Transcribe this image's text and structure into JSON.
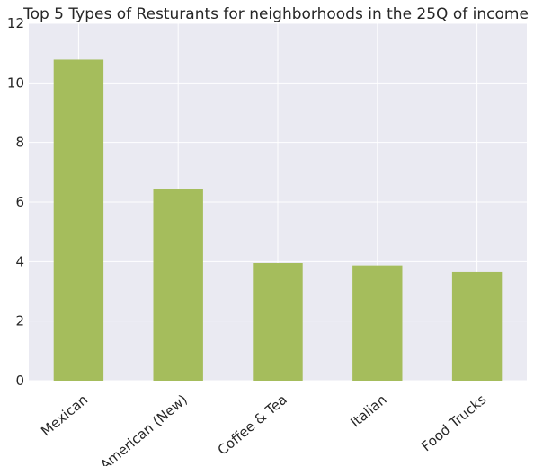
{
  "chart_data": {
    "type": "bar",
    "title": "Top 5 Types of Resturants for neighborhoods in the 25Q of income",
    "xlabel": "",
    "ylabel": "",
    "categories": [
      "Mexican",
      "American (New)",
      "Coffee & Tea",
      "Italian",
      "Food Trucks"
    ],
    "values": [
      10.78,
      6.45,
      3.95,
      3.87,
      3.65
    ],
    "ylim": [
      0,
      12
    ],
    "yticks": [
      0,
      2,
      4,
      6,
      8,
      10,
      12
    ],
    "grid": true,
    "colors": {
      "bar": "#a5bd5c",
      "plot_background": "#eaeaf2",
      "grid": "#ffffff",
      "text": "#262626"
    }
  }
}
